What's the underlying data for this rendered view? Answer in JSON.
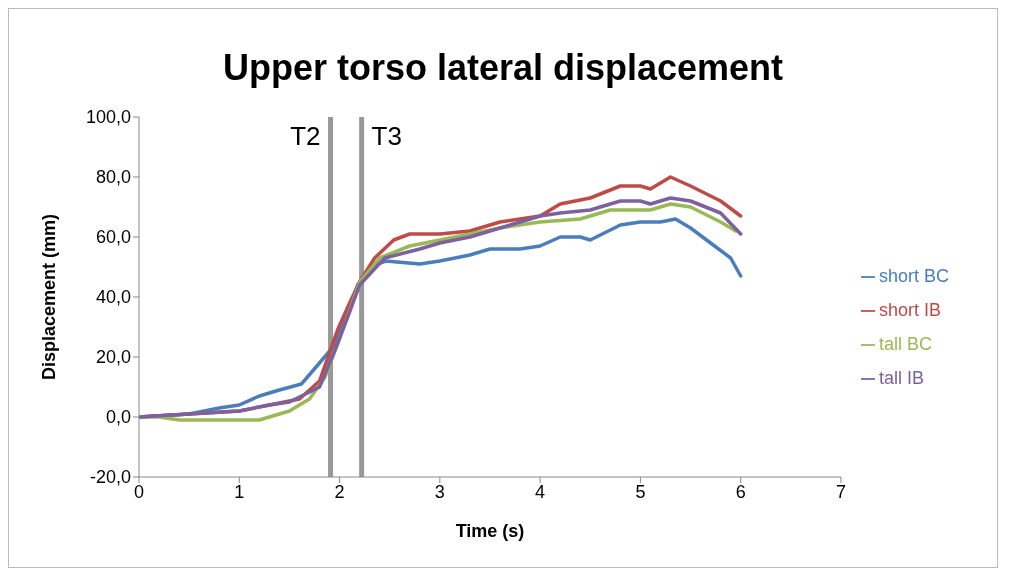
{
  "chart_data": {
    "type": "line",
    "title": "Upper torso lateral displacement",
    "xlabel": "Time (s)",
    "ylabel": "Displacement (mm)",
    "xlim": [
      0,
      7
    ],
    "xticks": [
      0,
      1,
      2,
      3,
      4,
      5,
      6,
      7
    ],
    "ylim": [
      -20,
      100
    ],
    "yticks": [
      {
        "value": -20,
        "label": "-20,0"
      },
      {
        "value": 0,
        "label": "0,0"
      },
      {
        "value": 20,
        "label": "20,0"
      },
      {
        "value": 40,
        "label": "40,0"
      },
      {
        "value": 60,
        "label": "60,0"
      },
      {
        "value": 80,
        "label": "80,0"
      },
      {
        "value": 100,
        "label": "100,0"
      }
    ],
    "grid": false,
    "legend": "right",
    "marker": "none",
    "line_style": "solid",
    "ref_lines": [
      {
        "axis": "x",
        "value": 1.91,
        "label": "T2",
        "color": "#999999"
      },
      {
        "axis": "x",
        "value": 2.22,
        "label": "T3",
        "color": "#999999"
      }
    ],
    "series": [
      {
        "name": "short BC",
        "color": "#4a7ebb",
        "x": [
          0,
          0.5,
          0.8,
          1,
          1.2,
          1.4,
          1.62,
          1.8,
          1.95,
          2.05,
          2.18,
          2.3,
          2.46,
          2.8,
          3,
          3.3,
          3.5,
          3.8,
          4,
          4.2,
          4.4,
          4.5,
          4.8,
          5,
          5.2,
          5.35,
          5.5,
          5.7,
          5.9,
          6
        ],
        "values": [
          0,
          1,
          3,
          4,
          7,
          9,
          11,
          18,
          24,
          32,
          44,
          50,
          52,
          51,
          52,
          54,
          56,
          56,
          57,
          60,
          60,
          59,
          64,
          65,
          65,
          66,
          63,
          58,
          53,
          47
        ]
      },
      {
        "name": "short IB",
        "color": "#be4b48",
        "x": [
          0,
          0.5,
          1,
          1.3,
          1.6,
          1.8,
          1.98,
          2.1,
          2.2,
          2.35,
          2.54,
          2.7,
          3,
          3.3,
          3.6,
          4,
          4.2,
          4.5,
          4.8,
          5,
          5.1,
          5.3,
          5.5,
          5.8,
          6
        ],
        "values": [
          0,
          1,
          2,
          4,
          6,
          12,
          29,
          38,
          45,
          53,
          59,
          61,
          61,
          62,
          65,
          67,
          71,
          73,
          77,
          77,
          76,
          80,
          77,
          72,
          67
        ]
      },
      {
        "name": "tall BC",
        "color": "#98b954",
        "x": [
          0,
          0.2,
          0.4,
          0.7,
          1,
          1.2,
          1.5,
          1.7,
          1.85,
          2,
          2.2,
          2.4,
          2.7,
          3,
          3.3,
          3.6,
          4,
          4.4,
          4.7,
          5,
          5.1,
          5.3,
          5.5,
          5.8,
          5.95
        ],
        "values": [
          0,
          0,
          -1,
          -1,
          -1,
          -1,
          2,
          6,
          13,
          26,
          45,
          53,
          57,
          59,
          61,
          63,
          65,
          66,
          69,
          69,
          69,
          71,
          70,
          65,
          62
        ]
      },
      {
        "name": "tall IB",
        "color": "#7d60a0",
        "x": [
          0,
          0.5,
          1,
          1.3,
          1.5,
          1.8,
          1.95,
          2.1,
          2.2,
          2.45,
          2.8,
          3,
          3.3,
          3.6,
          4,
          4.2,
          4.5,
          4.8,
          5,
          5.1,
          5.3,
          5.5,
          5.8,
          6
        ],
        "values": [
          0,
          1,
          2,
          4,
          5,
          10,
          22,
          35,
          44,
          53,
          56,
          58,
          60,
          63,
          67,
          68,
          69,
          72,
          72,
          71,
          73,
          72,
          68,
          61
        ]
      }
    ]
  }
}
